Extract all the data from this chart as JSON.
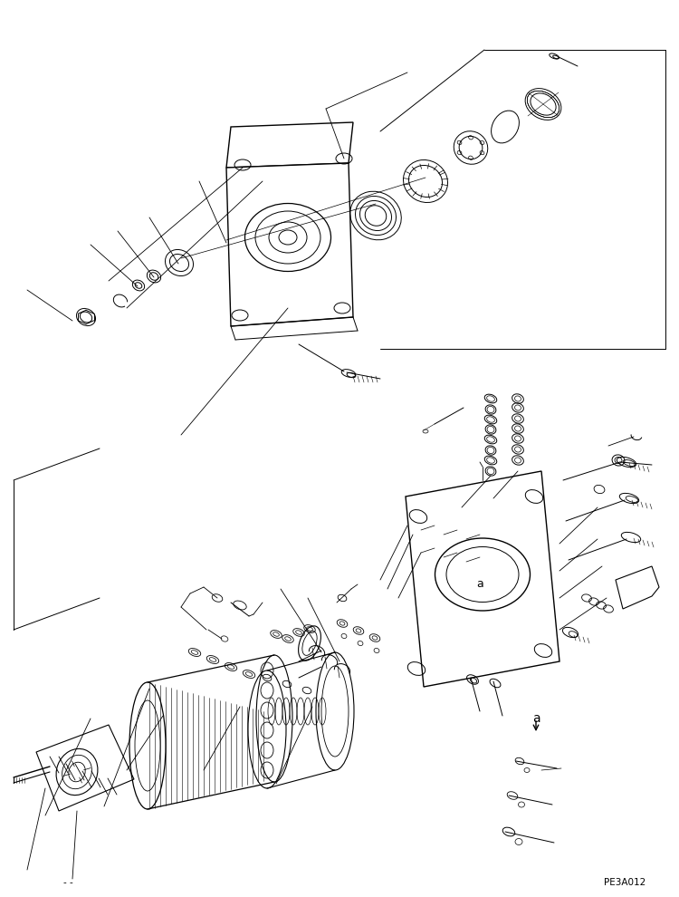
{
  "title": "",
  "background_color": "#ffffff",
  "line_color": "#000000",
  "fig_width": 7.5,
  "fig_height": 9.9,
  "bottom_left_text": "- -",
  "bottom_right_text": "PE3A012",
  "label_a": "a"
}
